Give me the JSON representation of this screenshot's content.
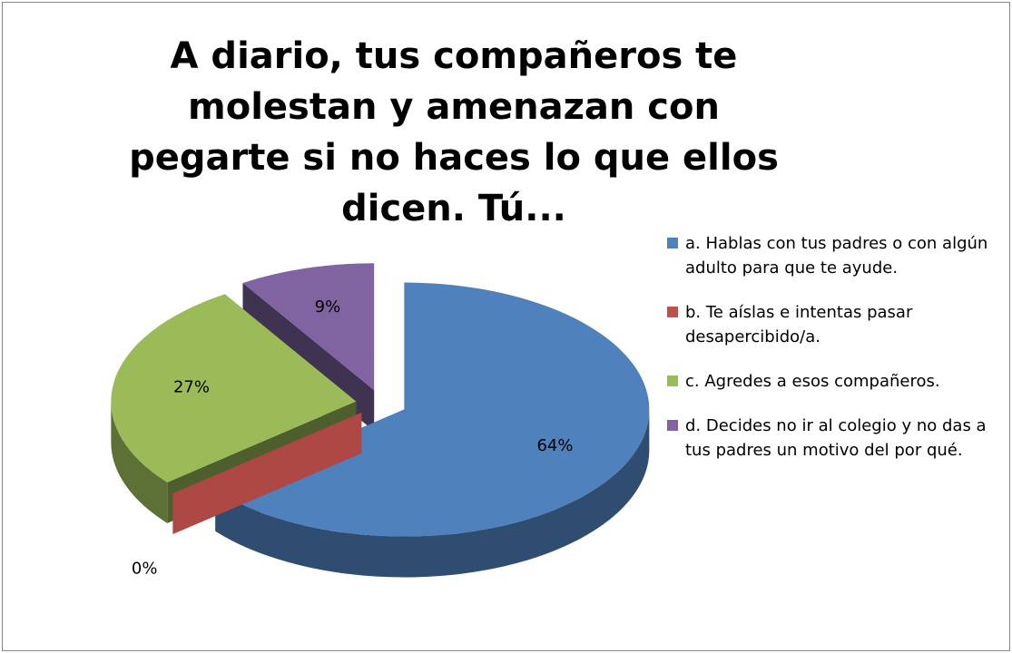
{
  "chart_data": {
    "type": "pie3d",
    "title": "A diario, tus compañeros te molestan y amenazan con pegarte si no haces lo que ellos dicen. Tú...",
    "categories": [
      "a. Hablas con tus padres o con algún adulto para que te ayude.",
      "b. Te aíslas e intentas pasar desapercibido/a.",
      "c. Agredes a esos compañeros.",
      "d. Decides no ir al colegio y no das a tus padres un motivo del por qué."
    ],
    "values": [
      64,
      0,
      27,
      9
    ],
    "value_labels": [
      "64%",
      "0%",
      "27%",
      "9%"
    ],
    "colors": [
      "#4f81bd",
      "#c0504d",
      "#9bbb59",
      "#8064a2"
    ],
    "legend": "right"
  }
}
